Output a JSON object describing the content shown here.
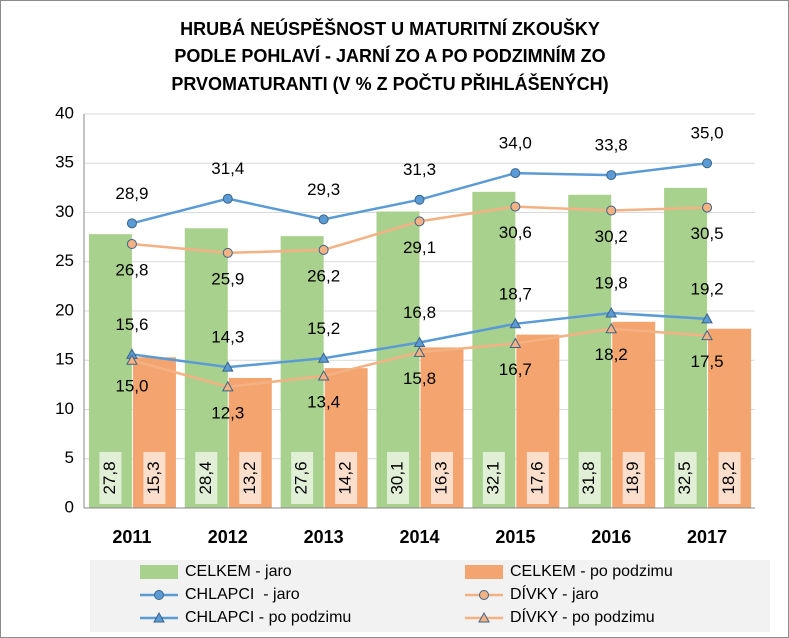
{
  "chart_data": {
    "type": "bar",
    "title": [
      "HRUBÁ NEÚSPĚŠNOST U MATURITNÍ ZKOUŠKY",
      "PODLE POHLAVÍ - JARNÍ ZO A PO PODZIMNÍM ZO",
      "PRVOMATURANTI (V % Z POČTU PŘIHLÁŠENÝCH)"
    ],
    "categories": [
      "2011",
      "2012",
      "2013",
      "2014",
      "2015",
      "2016",
      "2017"
    ],
    "ylim": [
      0,
      40
    ],
    "yticks": [
      0,
      5,
      10,
      15,
      20,
      25,
      30,
      35,
      40
    ],
    "grid": true,
    "legend": "bottom",
    "series": [
      {
        "name": "CELKEM - jaro",
        "type": "bar",
        "color": "#a9d18e",
        "values": [
          27.8,
          28.4,
          27.6,
          30.1,
          32.1,
          31.8,
          32.5
        ],
        "value_labels": [
          "27,8",
          "28,4",
          "27,6",
          "30,1",
          "32,1",
          "31,8",
          "32,5"
        ]
      },
      {
        "name": "CELKEM - po podzimu",
        "type": "bar",
        "color": "#f4a46e",
        "values": [
          15.3,
          13.2,
          14.2,
          16.3,
          17.6,
          18.9,
          18.2
        ],
        "value_labels": [
          "15,3",
          "13,2",
          "14,2",
          "16,3",
          "17,6",
          "18,9",
          "18,2"
        ]
      },
      {
        "name": "CHLAPCI  - jaro",
        "type": "line",
        "marker": "circle",
        "color": "#5b9bd5",
        "values": [
          28.9,
          31.4,
          29.3,
          31.3,
          34.0,
          33.8,
          35.0
        ],
        "value_labels": [
          "28,9",
          "31,4",
          "29,3",
          "31,3",
          "34,0",
          "33,8",
          "35,0"
        ]
      },
      {
        "name": "DÍVKY - jaro",
        "type": "line",
        "marker": "circle",
        "color": "#f4b183",
        "values": [
          26.8,
          25.9,
          26.2,
          29.1,
          30.6,
          30.2,
          30.5
        ],
        "value_labels": [
          "26,8",
          "25,9",
          "26,2",
          "29,1",
          "30,6",
          "30,2",
          "30,5"
        ]
      },
      {
        "name": "CHLAPCI - po podzimu",
        "type": "line",
        "marker": "triangle",
        "color": "#5b9bd5",
        "values": [
          15.6,
          14.3,
          15.2,
          16.8,
          18.7,
          19.8,
          19.2
        ],
        "value_labels": [
          "15,6",
          "14,3",
          "15,2",
          "16,8",
          "18,7",
          "19,8",
          "19,2"
        ]
      },
      {
        "name": "DÍVKY - po podzimu",
        "type": "line",
        "marker": "triangle",
        "color": "#f4b183",
        "values": [
          15.0,
          12.3,
          13.4,
          15.8,
          16.7,
          18.2,
          17.5
        ],
        "value_labels": [
          "15,0",
          "12,3",
          "13,4",
          "15,8",
          "16,7",
          "18,2",
          "17,5"
        ]
      }
    ]
  }
}
